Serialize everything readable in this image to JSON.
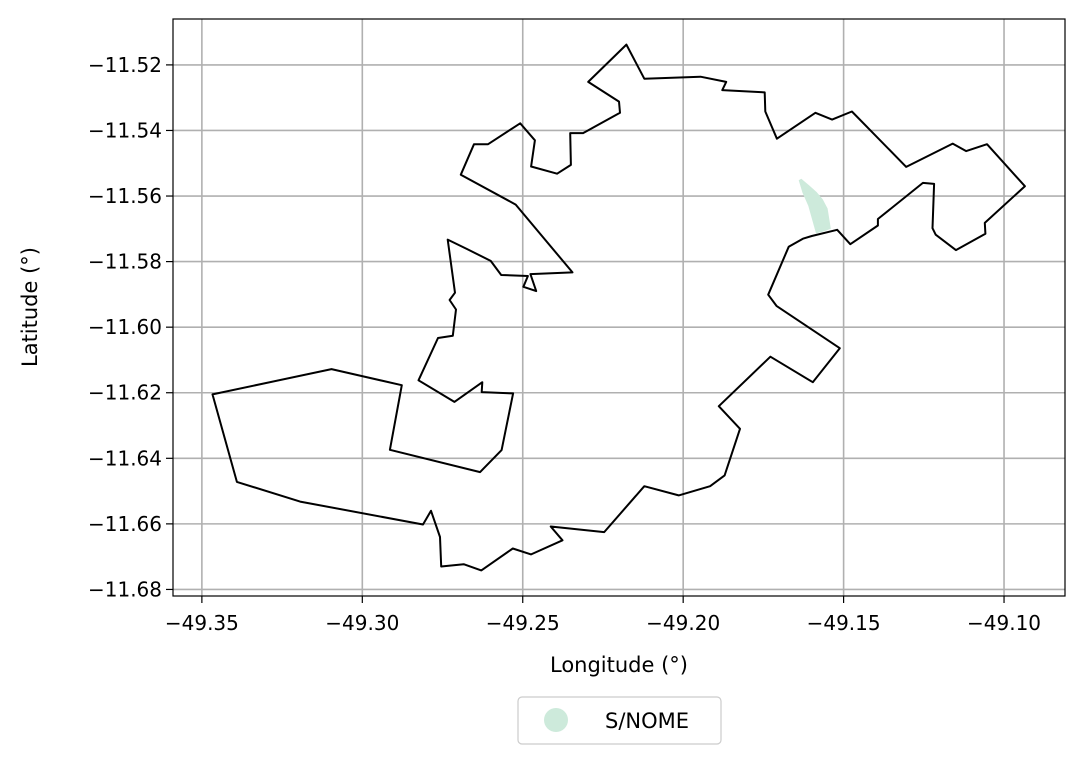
{
  "chart_data": {
    "type": "map",
    "xlabel": "Longitude (°)",
    "ylabel": "Latitude (°)",
    "xlim": [
      -49.359,
      -49.081
    ],
    "ylim": [
      -11.682,
      -11.506
    ],
    "xticks": [
      -49.35,
      -49.3,
      -49.25,
      -49.2,
      -49.15,
      -49.1
    ],
    "xtick_labels": [
      "−49.35",
      "−49.30",
      "−49.25",
      "−49.20",
      "−49.15",
      "−49.10"
    ],
    "yticks": [
      -11.52,
      -11.54,
      -11.56,
      -11.58,
      -11.6,
      -11.62,
      -11.64,
      -11.66,
      -11.68
    ],
    "ytick_labels": [
      "−11.52",
      "−11.54",
      "−11.56",
      "−11.58",
      "−11.60",
      "−11.62",
      "−11.64",
      "−11.66",
      "−11.68"
    ],
    "grid": true,
    "legend_placement": "bottom-center",
    "legend": [
      {
        "name": "S/NOME",
        "color": "#cdeadb"
      }
    ],
    "boundary_color": "#000000",
    "boundary": [
      [
        -49.2177,
        -11.5138
      ],
      [
        -49.2121,
        -11.5242
      ],
      [
        -49.1946,
        -11.5236
      ],
      [
        -49.1866,
        -11.5252
      ],
      [
        -49.1878,
        -11.5277
      ],
      [
        -49.1746,
        -11.5284
      ],
      [
        -49.1744,
        -11.5342
      ],
      [
        -49.1708,
        -11.5425
      ],
      [
        -49.1588,
        -11.5346
      ],
      [
        -49.1536,
        -11.5367
      ],
      [
        -49.1474,
        -11.5342
      ],
      [
        -49.1305,
        -11.5511
      ],
      [
        -49.116,
        -11.544
      ],
      [
        -49.1118,
        -11.5463
      ],
      [
        -49.1053,
        -11.5442
      ],
      [
        -49.0935,
        -11.557
      ],
      [
        -49.106,
        -11.5682
      ],
      [
        -49.1058,
        -11.5715
      ],
      [
        -49.115,
        -11.5765
      ],
      [
        -49.1213,
        -11.5718
      ],
      [
        -49.1223,
        -11.5698
      ],
      [
        -49.1218,
        -11.5563
      ],
      [
        -49.1253,
        -11.556
      ],
      [
        -49.1393,
        -11.567
      ],
      [
        -49.1393,
        -11.569
      ],
      [
        -49.1479,
        -11.5747
      ],
      [
        -49.152,
        -11.5703
      ],
      [
        -49.1599,
        -11.5722
      ],
      [
        -49.1627,
        -11.573
      ],
      [
        -49.1671,
        -11.5755
      ],
      [
        -49.1735,
        -11.5901
      ],
      [
        -49.1709,
        -11.5935
      ],
      [
        -49.1512,
        -11.6064
      ],
      [
        -49.1596,
        -11.6168
      ],
      [
        -49.1728,
        -11.609
      ],
      [
        -49.1889,
        -11.6241
      ],
      [
        -49.1823,
        -11.631
      ],
      [
        -49.1871,
        -11.6452
      ],
      [
        -49.1916,
        -11.6485
      ],
      [
        -49.2014,
        -11.6513
      ],
      [
        -49.2121,
        -11.6485
      ],
      [
        -49.2246,
        -11.6625
      ],
      [
        -49.2413,
        -11.6608
      ],
      [
        -49.2376,
        -11.665
      ],
      [
        -49.2474,
        -11.6693
      ],
      [
        -49.2531,
        -11.6675
      ],
      [
        -49.2629,
        -11.6742
      ],
      [
        -49.2684,
        -11.6723
      ],
      [
        -49.2754,
        -11.673
      ],
      [
        -49.2758,
        -11.664
      ],
      [
        -49.2786,
        -11.656
      ],
      [
        -49.2811,
        -11.6602
      ],
      [
        -49.3194,
        -11.6532
      ],
      [
        -49.3391,
        -11.6472
      ],
      [
        -49.3467,
        -11.6205
      ],
      [
        -49.3096,
        -11.6128
      ],
      [
        -49.2877,
        -11.6177
      ],
      [
        -49.2914,
        -11.6374
      ],
      [
        -49.2633,
        -11.6442
      ],
      [
        -49.2566,
        -11.6375
      ],
      [
        -49.253,
        -11.6202
      ],
      [
        -49.2628,
        -11.6198
      ],
      [
        -49.2626,
        -11.6168
      ],
      [
        -49.2713,
        -11.6228
      ],
      [
        -49.2825,
        -11.6162
      ],
      [
        -49.2764,
        -11.6033
      ],
      [
        -49.2718,
        -11.6026
      ],
      [
        -49.2708,
        -11.5946
      ],
      [
        -49.2728,
        -11.5917
      ],
      [
        -49.2711,
        -11.5895
      ],
      [
        -49.2734,
        -11.5733
      ],
      [
        -49.2673,
        -11.5762
      ],
      [
        -49.26,
        -11.5798
      ],
      [
        -49.2567,
        -11.5841
      ],
      [
        -49.2484,
        -11.5844
      ],
      [
        -49.2498,
        -11.5877
      ],
      [
        -49.2458,
        -11.589
      ],
      [
        -49.2476,
        -11.5838
      ],
      [
        -49.2345,
        -11.5833
      ],
      [
        -49.2522,
        -11.5626
      ],
      [
        -49.2693,
        -11.5535
      ],
      [
        -49.2652,
        -11.5442
      ],
      [
        -49.2608,
        -11.5442
      ],
      [
        -49.2508,
        -11.5378
      ],
      [
        -49.2462,
        -11.543
      ],
      [
        -49.2474,
        -11.551
      ],
      [
        -49.2393,
        -11.5532
      ],
      [
        -49.235,
        -11.5505
      ],
      [
        -49.2352,
        -11.5408
      ],
      [
        -49.2312,
        -11.5408
      ],
      [
        -49.2197,
        -11.5346
      ],
      [
        -49.22,
        -11.5312
      ],
      [
        -49.2296,
        -11.5252
      ],
      [
        -49.2177,
        -11.5138
      ]
    ],
    "highlighted_area": [
      [
        -49.1632,
        -11.5547
      ],
      [
        -49.1607,
        -11.5568
      ],
      [
        -49.1584,
        -11.5588
      ],
      [
        -49.1565,
        -11.561
      ],
      [
        -49.155,
        -11.5638
      ],
      [
        -49.1543,
        -11.568
      ],
      [
        -49.154,
        -11.57
      ],
      [
        -49.1562,
        -11.5708
      ],
      [
        -49.1586,
        -11.5714
      ],
      [
        -49.161,
        -11.563
      ],
      [
        -49.1628,
        -11.559
      ],
      [
        -49.164,
        -11.5552
      ]
    ]
  }
}
